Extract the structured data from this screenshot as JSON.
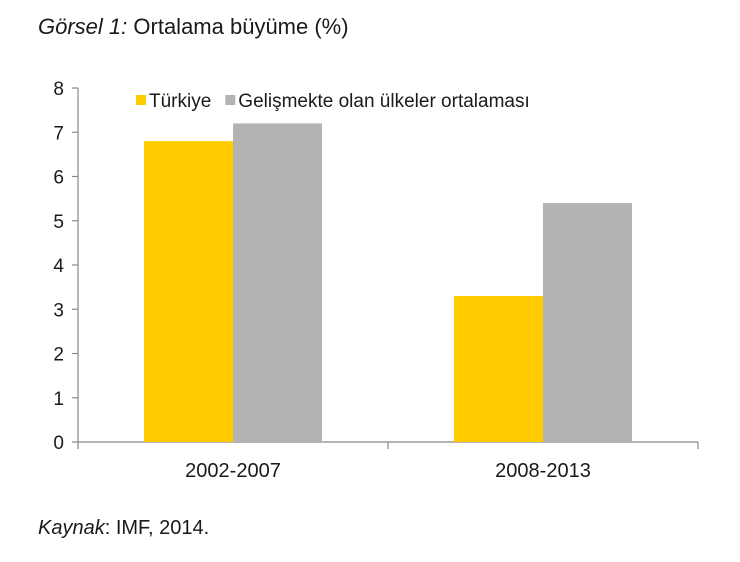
{
  "figure": {
    "title_prefix": "Görsel 1:",
    "title_text": "Ortalama büyüme (%)",
    "source_prefix": "Kaynak",
    "source_text": ": IMF, 2014."
  },
  "chart_data": {
    "type": "bar",
    "title": "Ortalama büyüme (%)",
    "categories": [
      "2002-2007",
      "2008-2013"
    ],
    "series": [
      {
        "name": "Türkiye",
        "values": [
          6.8,
          3.3
        ],
        "color": "#FFCC00"
      },
      {
        "name": "Gelişmekte olan ülkeler ortalaması",
        "values": [
          7.2,
          5.4
        ],
        "color": "#B3B3B3"
      }
    ],
    "xlabel": "",
    "ylabel": "",
    "ylim": [
      0,
      8
    ],
    "yticks": [
      "0",
      "1",
      "2",
      "3",
      "4",
      "5",
      "6",
      "7",
      "8"
    ],
    "grid": false,
    "legend_position": "top"
  }
}
